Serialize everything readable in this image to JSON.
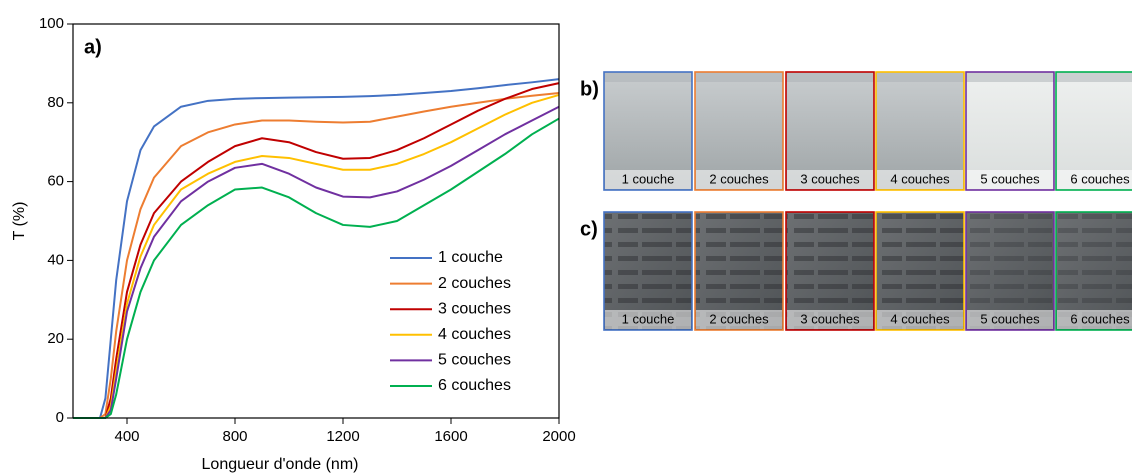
{
  "chart_data": {
    "type": "line",
    "label": "a)",
    "x_label": "Longueur d'onde (nm)",
    "y_label": "T (%)",
    "xlim": [
      200,
      2000
    ],
    "xticks": [
      400,
      800,
      1200,
      1600,
      2000
    ],
    "ylim": [
      0,
      100
    ],
    "yticks": [
      0,
      20,
      40,
      60,
      80,
      100
    ],
    "legend": "lower right",
    "x": [
      200,
      300,
      320,
      340,
      360,
      400,
      450,
      500,
      600,
      700,
      800,
      900,
      1000,
      1100,
      1200,
      1300,
      1400,
      1500,
      1600,
      1700,
      1800,
      1900,
      2000
    ],
    "series": [
      {
        "name": "1 couche",
        "color": "#4472c4",
        "values": [
          0,
          0,
          5,
          20,
          35,
          55,
          68,
          74,
          79,
          80.5,
          81,
          81.2,
          81.3,
          81.4,
          81.5,
          81.7,
          82,
          82.5,
          83,
          83.7,
          84.5,
          85.2,
          86
        ]
      },
      {
        "name": "2 couches",
        "color": "#ed7d31",
        "values": [
          0,
          0,
          1,
          10,
          22,
          40,
          53,
          61,
          69,
          72.5,
          74.5,
          75.5,
          75.5,
          75.2,
          75,
          75.2,
          76.5,
          77.8,
          79,
          80,
          81,
          81.8,
          82.5
        ]
      },
      {
        "name": "3 couches",
        "color": "#c00000",
        "values": [
          0,
          0,
          0,
          5,
          15,
          32,
          44,
          52,
          60,
          65,
          69,
          71,
          70,
          67.5,
          65.8,
          66,
          68,
          71,
          74.5,
          78,
          81,
          83.5,
          85
        ]
      },
      {
        "name": "4 couches",
        "color": "#ffc000",
        "values": [
          0,
          0,
          0,
          3,
          12,
          29,
          41,
          49,
          58,
          62,
          65,
          66.5,
          66,
          64.5,
          63,
          63,
          64.5,
          67,
          70,
          73.5,
          77,
          80,
          82
        ]
      },
      {
        "name": "5 couches",
        "color": "#7030a0",
        "values": [
          0,
          0,
          0,
          2,
          10,
          27,
          38,
          46,
          55,
          60,
          63.5,
          64.5,
          62,
          58.5,
          56.2,
          56,
          57.5,
          60.5,
          64,
          68,
          72,
          75.5,
          79
        ]
      },
      {
        "name": "6 couches",
        "color": "#00b050",
        "values": [
          0,
          0,
          0,
          1,
          6,
          20,
          32,
          40,
          49,
          54,
          58,
          58.5,
          56,
          52,
          49,
          48.5,
          50,
          54,
          58,
          62.5,
          67,
          72,
          76
        ]
      }
    ]
  },
  "panels": [
    {
      "label": "b)",
      "tiles": [
        "1 couche",
        "2 couches",
        "3 couches",
        "4 couches",
        "5 couches",
        "6 couches"
      ]
    },
    {
      "label": "c)",
      "tiles": [
        "1 couche",
        "2 couches",
        "3 couches",
        "4 couches",
        "5 couches",
        "6 couches"
      ]
    }
  ]
}
